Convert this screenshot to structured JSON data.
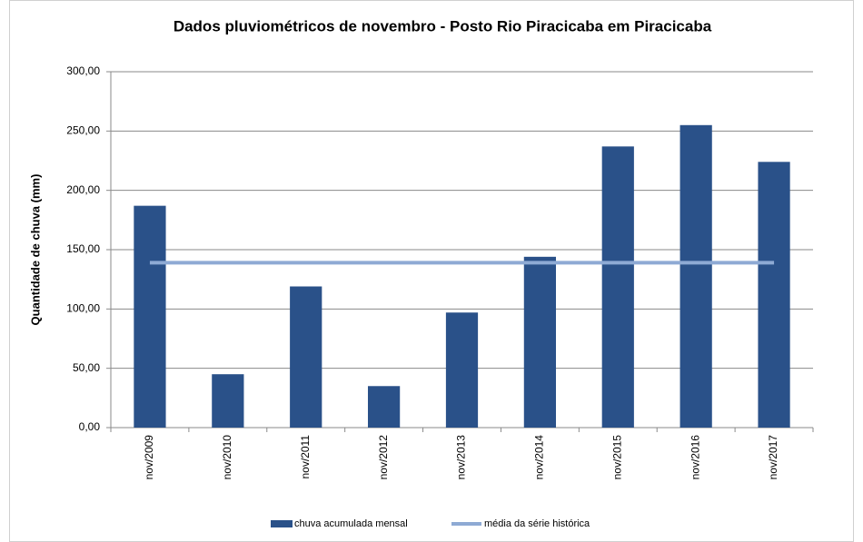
{
  "chart_data": {
    "type": "bar",
    "title": "Dados pluviométricos de novembro - Posto Rio Piracicaba em Piracicaba",
    "y_label": "Quantidade de chuva (mm)",
    "categories": [
      "nov/2009",
      "nov/2010",
      "nov/2011",
      "nov/2012",
      "nov/2013",
      "nov/2014",
      "nov/2015",
      "nov/2016",
      "nov/2017"
    ],
    "series": [
      {
        "name": "chuva acumulada mensal",
        "type": "bar",
        "color": "#2a5189",
        "values": [
          187,
          45,
          119,
          35,
          97,
          144,
          237,
          255,
          224
        ]
      },
      {
        "name": "média da série histórica",
        "type": "line",
        "color": "#8eaad4",
        "values": [
          139,
          139,
          139,
          139,
          139,
          139,
          139,
          139,
          139
        ]
      }
    ],
    "ylim": [
      0,
      300
    ],
    "yticks": [
      {
        "value": 0,
        "label": "0,00"
      },
      {
        "value": 50,
        "label": "50,00"
      },
      {
        "value": 100,
        "label": "100,00"
      },
      {
        "value": 150,
        "label": "150,00"
      },
      {
        "value": 200,
        "label": "200,00"
      },
      {
        "value": 250,
        "label": "250,00"
      },
      {
        "value": 300,
        "label": "300,00"
      }
    ],
    "grid": true,
    "legend": "bottom"
  }
}
